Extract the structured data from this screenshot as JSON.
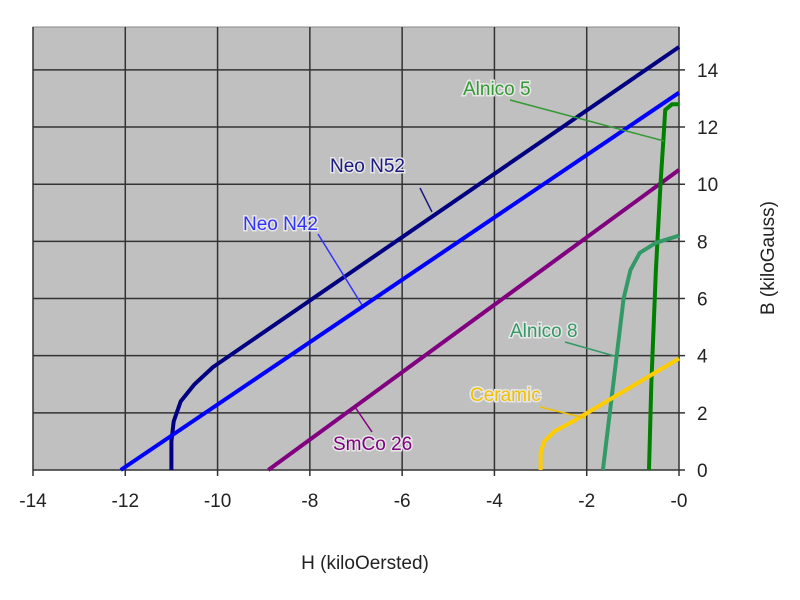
{
  "chart_data": {
    "type": "line",
    "title": "",
    "xlabel": "H (kiloOersted)",
    "ylabel": "B (kiloGauss)",
    "xlim": [
      -14,
      0
    ],
    "ylim": [
      0,
      15.5
    ],
    "grid": true,
    "y_axis_side": "right",
    "x_ticks": [
      -14,
      -12,
      -10,
      -8,
      -6,
      -4,
      -2,
      0
    ],
    "x_tick_labels": [
      "-14",
      "-12",
      "-10",
      "-8",
      "-6",
      "-4",
      "-2",
      "-0"
    ],
    "y_ticks": [
      0,
      2,
      4,
      6,
      8,
      10,
      12,
      14
    ],
    "y_tick_labels": [
      "0",
      "2",
      "4",
      "6",
      "8",
      "10",
      "12",
      "14"
    ],
    "legend": "inline labels",
    "series": [
      {
        "name": "Neo N52",
        "color": "#000080",
        "x": [
          -11,
          -11,
          -10.95,
          -10.8,
          -10.5,
          -10.1,
          0
        ],
        "y": [
          0,
          1.0,
          1.7,
          2.4,
          3.0,
          3.6,
          14.8
        ]
      },
      {
        "name": "Neo N42",
        "color": "#0000ff",
        "x": [
          -12.1,
          0
        ],
        "y": [
          0,
          13.2
        ]
      },
      {
        "name": "SmCo 26",
        "color": "#800080",
        "x": [
          -8.9,
          0
        ],
        "y": [
          0,
          10.5
        ]
      },
      {
        "name": "Alnico 5",
        "color": "#008000",
        "x": [
          -0.65,
          -0.6,
          -0.5,
          -0.4,
          -0.32,
          -0.3,
          -0.15,
          0
        ],
        "y": [
          0,
          3,
          7,
          10,
          12,
          12.6,
          12.8,
          12.8
        ]
      },
      {
        "name": "Alnico 8",
        "color": "#339966",
        "x": [
          -1.65,
          -1.5,
          -1.35,
          -1.2,
          -1.05,
          -0.85,
          -0.5,
          0
        ],
        "y": [
          0,
          2,
          4,
          6,
          7,
          7.6,
          7.95,
          8.2
        ]
      },
      {
        "name": "Ceramic",
        "color": "#ffcc00",
        "x": [
          -3,
          -3,
          -2.92,
          -2.7,
          -2.3,
          0
        ],
        "y": [
          0,
          0.6,
          1.0,
          1.35,
          1.7,
          3.9
        ]
      }
    ]
  }
}
